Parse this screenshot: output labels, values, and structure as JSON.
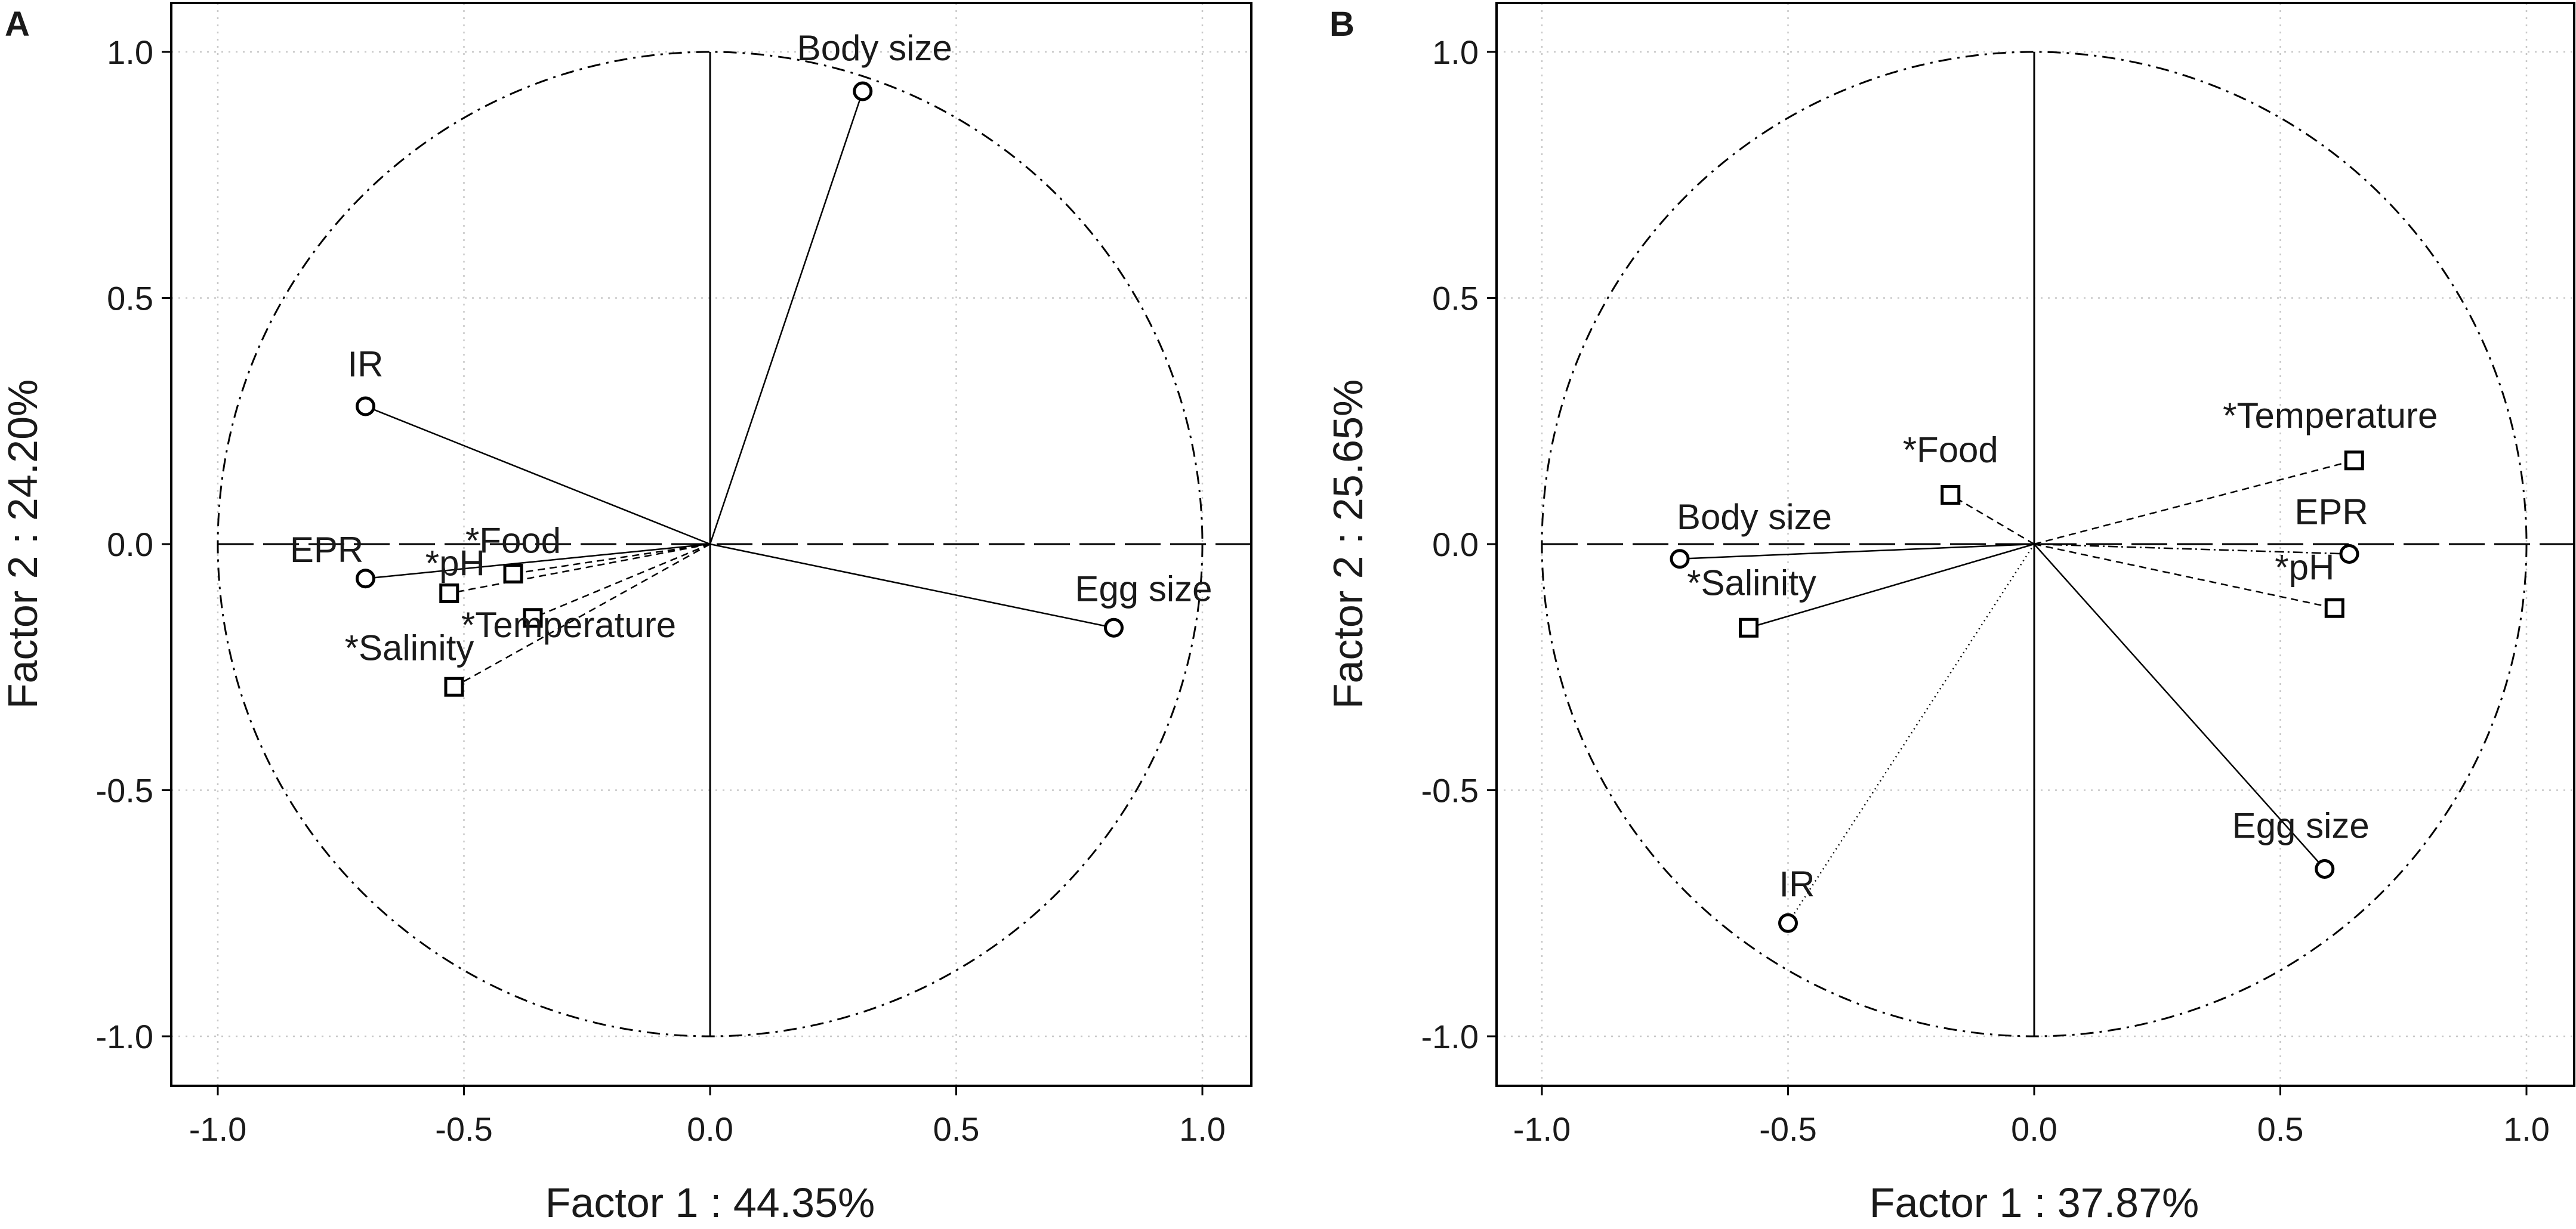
{
  "chart_data": [
    {
      "type": "scatter",
      "panel": "A",
      "title": "",
      "xlabel": "Factor 1 : 44.35%",
      "ylabel": "Factor 2 : 24.20%",
      "xlim": [
        -1.1,
        1.1
      ],
      "ylim": [
        -1.1,
        1.1
      ],
      "xticks": [
        "-1.0",
        "-0.5",
        "0.0",
        "0.5",
        "1.0"
      ],
      "yticks": [
        "1.0",
        "0.5",
        "0.0",
        "-0.5",
        "-1.0"
      ],
      "grid": true,
      "unit_circle": true,
      "points": [
        {
          "label": "Body size",
          "x": 0.31,
          "y": 0.92,
          "marker": "circle",
          "line": "solid"
        },
        {
          "label": "IR",
          "x": -0.7,
          "y": 0.28,
          "marker": "circle",
          "line": "solid"
        },
        {
          "label": "Egg size",
          "x": 0.82,
          "y": -0.17,
          "marker": "circle",
          "line": "solid"
        },
        {
          "label": "EPR",
          "x": -0.7,
          "y": -0.07,
          "marker": "circle",
          "line": "solid"
        },
        {
          "label": "*Food",
          "x": -0.4,
          "y": -0.06,
          "marker": "square",
          "line": "dashed"
        },
        {
          "label": "*pH",
          "x": -0.53,
          "y": -0.1,
          "marker": "square",
          "line": "dashed"
        },
        {
          "label": "*Temperature",
          "x": -0.36,
          "y": -0.15,
          "marker": "square",
          "line": "dashed"
        },
        {
          "label": "*Salinity",
          "x": -0.52,
          "y": -0.29,
          "marker": "square",
          "line": "dashed"
        }
      ]
    },
    {
      "type": "scatter",
      "panel": "B",
      "title": "",
      "xlabel": "Factor 1 : 37.87%",
      "ylabel": "Factor 2 : 25.65%",
      "xlim": [
        -1.1,
        1.1
      ],
      "ylim": [
        -1.1,
        1.1
      ],
      "xticks": [
        "-1.0",
        "-0.5",
        "0.0",
        "0.5",
        "1.0"
      ],
      "yticks": [
        "1.0",
        "0.5",
        "0.0",
        "-0.5",
        "-1.0"
      ],
      "grid": true,
      "unit_circle": true,
      "points": [
        {
          "label": "*Temperature",
          "x": 0.65,
          "y": 0.17,
          "marker": "square",
          "line": "dashed"
        },
        {
          "label": "*Food",
          "x": -0.17,
          "y": 0.1,
          "marker": "square",
          "line": "dashed"
        },
        {
          "label": "Body size",
          "x": -0.72,
          "y": -0.03,
          "marker": "circle",
          "line": "solid"
        },
        {
          "label": "EPR",
          "x": 0.64,
          "y": -0.02,
          "marker": "circle",
          "line": "dashdot"
        },
        {
          "label": "*pH",
          "x": 0.61,
          "y": -0.13,
          "marker": "square",
          "line": "dashed"
        },
        {
          "label": "*Salinity",
          "x": -0.58,
          "y": -0.17,
          "marker": "square",
          "line": "solid"
        },
        {
          "label": "Egg size",
          "x": 0.59,
          "y": -0.66,
          "marker": "circle",
          "line": "solid"
        },
        {
          "label": "IR",
          "x": -0.5,
          "y": -0.77,
          "marker": "circle",
          "line": "dotted"
        }
      ]
    }
  ]
}
